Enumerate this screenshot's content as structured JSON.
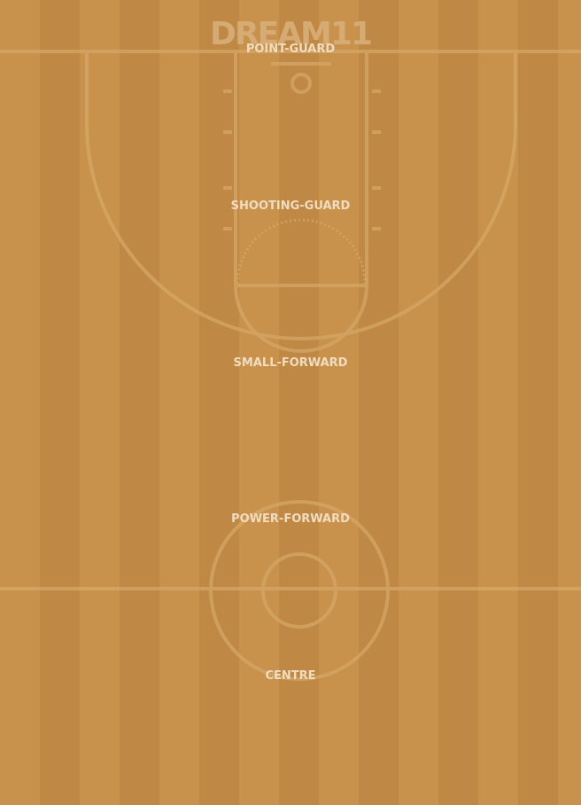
{
  "brand": {
    "logo_text": "DREAM11"
  },
  "positions": [
    {
      "label": "POINT-GUARD"
    },
    {
      "label": "SHOOTING-GUARD"
    },
    {
      "label": "SMALL-FORWARD"
    },
    {
      "label": "POWER-FORWARD"
    },
    {
      "label": "CENTRE"
    }
  ],
  "colors": {
    "court_light": "#c8924c",
    "court_dark": "#bf8945",
    "court_line": "#d6a766",
    "label_text": "#f0dcc0"
  },
  "icons": {
    "court": "basketball-court-icon"
  }
}
